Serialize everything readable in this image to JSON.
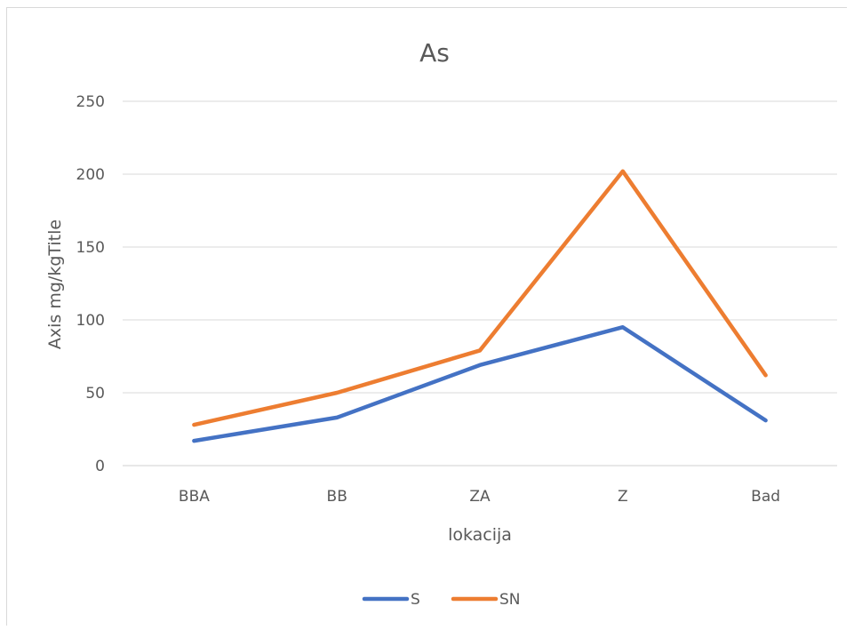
{
  "chart_data": {
    "type": "line",
    "title": "As",
    "xlabel": "lokacija",
    "ylabel": "Axis mg/kgTitle",
    "categories": [
      "BBA",
      "BB",
      "ZA",
      "Z",
      "Bad"
    ],
    "ylim": [
      0,
      250
    ],
    "yticks": [
      0,
      50,
      100,
      150,
      200,
      250
    ],
    "grid": true,
    "legend_position": "bottom",
    "series": [
      {
        "name": "S",
        "color": "#4472c4",
        "values": [
          17,
          33,
          69,
          95,
          31
        ]
      },
      {
        "name": "SN",
        "color": "#ed7d31",
        "values": [
          28,
          50,
          79,
          202,
          62
        ]
      }
    ]
  }
}
